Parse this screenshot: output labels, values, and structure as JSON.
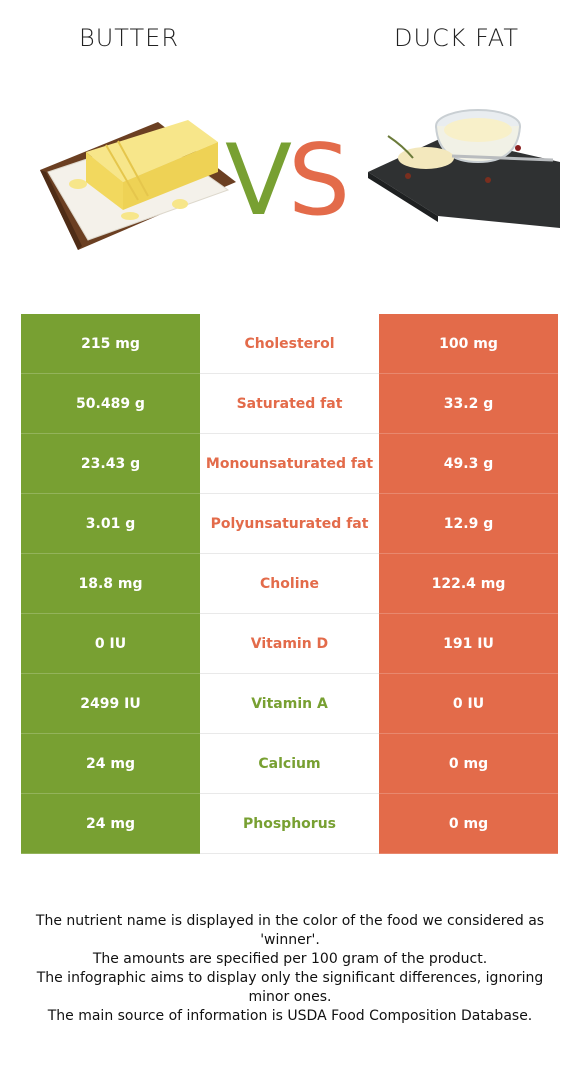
{
  "left_food": {
    "name": "BUTTER",
    "color": "#78a032"
  },
  "right_food": {
    "name": "DUCK FAT",
    "color": "#e36b4a"
  },
  "vs": {
    "v": "V",
    "s": "S"
  },
  "rows": [
    {
      "nutrient": "Cholesterol",
      "left": "215 mg",
      "right": "100 mg",
      "winner": "right"
    },
    {
      "nutrient": "Saturated fat",
      "left": "50.489 g",
      "right": "33.2 g",
      "winner": "right"
    },
    {
      "nutrient": "Monounsaturated fat",
      "left": "23.43 g",
      "right": "49.3 g",
      "winner": "right"
    },
    {
      "nutrient": "Polyunsaturated fat",
      "left": "3.01 g",
      "right": "12.9 g",
      "winner": "right"
    },
    {
      "nutrient": "Choline",
      "left": "18.8 mg",
      "right": "122.4 mg",
      "winner": "right"
    },
    {
      "nutrient": "Vitamin D",
      "left": "0 IU",
      "right": "191 IU",
      "winner": "right"
    },
    {
      "nutrient": "Vitamin A",
      "left": "2499 IU",
      "right": "0 IU",
      "winner": "left"
    },
    {
      "nutrient": "Calcium",
      "left": "24 mg",
      "right": "0 mg",
      "winner": "left"
    },
    {
      "nutrient": "Phosphorus",
      "left": "24 mg",
      "right": "0 mg",
      "winner": "left"
    }
  ],
  "footer": {
    "line1": "The nutrient name is displayed in the color of the food we considered as 'winner'.",
    "line2": "The amounts are specified per 100 gram of the product.",
    "line3": "The infographic aims to display only the significant differences, ignoring minor ones.",
    "line4": "The main source of information is USDA Food Composition Database."
  }
}
